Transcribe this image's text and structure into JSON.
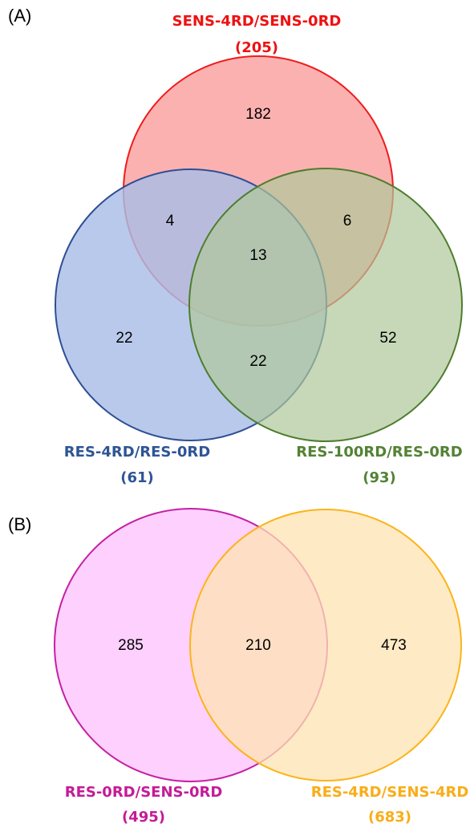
{
  "panel_a": {
    "label": "(A)",
    "sets": {
      "sens": {
        "name": "SENS-4RD/SENS-0RD",
        "total": "(205)",
        "fill": "#fcaaaa",
        "stroke": "#ee1c1c",
        "text_color": "#ee1111"
      },
      "res4": {
        "name": "RES-4RD/RES-0RD",
        "total": "(61)",
        "fill": "#a9bde6",
        "stroke": "#2e4f92",
        "text_color": "#2e5596"
      },
      "res100": {
        "name": "RES-100RD/RES-0RD",
        "total": "(93)",
        "fill": "#afc79a",
        "stroke": "#4e7d2e",
        "text_color": "#548235"
      }
    },
    "regions": {
      "sens_only": "182",
      "res4_only": "22",
      "res100_only": "52",
      "sens_res4": "4",
      "sens_res100": "6",
      "res4_res100": "22",
      "all_three": "13"
    }
  },
  "panel_b": {
    "label": "(B)",
    "sets": {
      "res0": {
        "name": "RES-0RD/SENS-0RD",
        "total": "(495)",
        "fill": "#fecefe",
        "stroke": "#c61fa4",
        "text_color": "#c41b98"
      },
      "res4sens4": {
        "name": "RES-4RD/SENS-4RD",
        "total": "(683)",
        "fill": "#fde4b2",
        "stroke": "#fbb41a",
        "text_color": "#f9ad19"
      }
    },
    "regions": {
      "res0_only": "285",
      "overlap": "210",
      "res4sens4_only": "473"
    }
  }
}
